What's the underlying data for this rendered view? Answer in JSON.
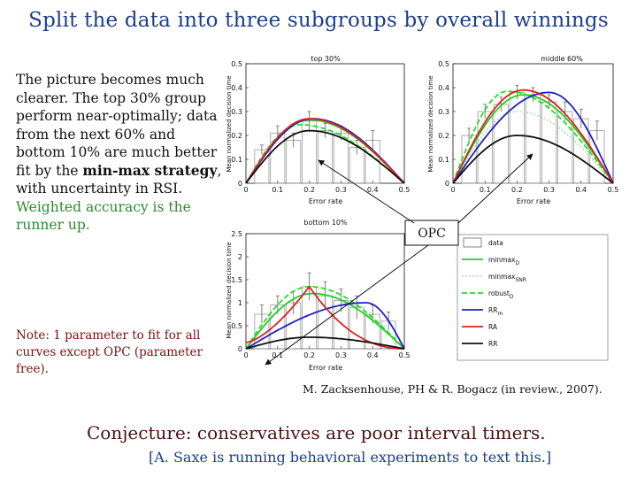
{
  "title": "Split the data into three subgroups by overall winnings",
  "body": {
    "part1": "The picture becomes much clearer. The top 30% group perform near-optimally; data from the next 60% and bottom 10% are much better fit by the ",
    "bold": "min-max strategy",
    "part2": ", with uncertainty in RSI. ",
    "green": "Weighted accuracy is the runner up."
  },
  "note": "Note: 1 parameter to fit for all curves except OPC (parameter free).",
  "citation": "M. Zacksenhouse, PH & R. Bogacz (in review., 2007).",
  "conjecture": "Conjecture: conservatives are poor interval timers.",
  "bracket": "[A. Saxe is running behavioral experiments to text this.]",
  "opc_label": "OPC",
  "plots": {
    "top": {
      "title": "top 30%",
      "xlabel": "Error rate",
      "ylabel": "Mean normalized decision time"
    },
    "middle": {
      "title": "middle 60%",
      "xlabel": "Error rate",
      "ylabel": "Mean normalized decision time"
    },
    "bottom": {
      "title": "bottom 10%",
      "xlabel": "Error rate",
      "ylabel": "Mean normalized decision time"
    }
  },
  "legend": [
    "data",
    "minmax",
    "minmax",
    "robust",
    "RR",
    "RA",
    "RR"
  ],
  "legend_sub": [
    "",
    "D",
    "SNR",
    "D",
    "m",
    "",
    ""
  ],
  "colors": {
    "title": "#1d3e8c",
    "green_text": "#2c8a2c",
    "note": "#7a1010",
    "conjecture": "#4a1010",
    "s_minmaxD": "#22cc22",
    "s_minmaxSNR": "#9fe09f",
    "s_robustD": "#22dd22",
    "s_RRm": "#2020c0",
    "s_RA": "#dd2020",
    "s_RR": "#111111",
    "s_data": "#999999"
  },
  "chart_data": [
    {
      "type": "line",
      "title": "top 30%",
      "xlabel": "Error rate",
      "ylabel": "Mean normalized decision time",
      "xlim": [
        0,
        0.5
      ],
      "ylim": [
        0,
        0.5
      ],
      "xticks": [
        "0",
        "0.1",
        "0.2",
        "0.3",
        "0.4",
        "0.5"
      ],
      "yticks": [
        "0",
        "0.1",
        "0.2",
        "0.3",
        "0.4",
        "0.5"
      ],
      "bars": {
        "x": [
          0.05,
          0.1,
          0.15,
          0.2,
          0.25,
          0.3,
          0.35,
          0.4
        ],
        "values": [
          0.14,
          0.21,
          0.18,
          0.26,
          0.22,
          0.21,
          0.15,
          0.18
        ],
        "errors": [
          0.02,
          0.03,
          0.03,
          0.04,
          0.03,
          0.03,
          0.03,
          0.04
        ]
      },
      "series": [
        {
          "key": "minmaxD",
          "style": "solid",
          "peak": 0.265,
          "tp": 0.2
        },
        {
          "key": "robustD",
          "style": "dashed",
          "peak": 0.245,
          "tp": 0.17
        },
        {
          "key": "RRm",
          "style": "solid",
          "peak": 0.27,
          "tp": 0.21
        },
        {
          "key": "RA",
          "style": "solid",
          "peak": 0.27,
          "tp": 0.2
        },
        {
          "key": "RR",
          "style": "solid",
          "peak": 0.22,
          "tp": 0.2
        }
      ]
    },
    {
      "type": "line",
      "title": "middle 60%",
      "xlabel": "Error rate",
      "ylabel": "Mean normalized decision time",
      "xlim": [
        0,
        0.5
      ],
      "ylim": [
        0,
        0.5
      ],
      "xticks": [
        "0",
        "0.1",
        "0.2",
        "0.3",
        "0.4",
        "0.5"
      ],
      "yticks": [
        "0",
        "0.1",
        "0.2",
        "0.3",
        "0.4",
        "0.5"
      ],
      "bars": {
        "x": [
          0.05,
          0.1,
          0.15,
          0.2,
          0.25,
          0.3,
          0.35,
          0.4,
          0.45
        ],
        "values": [
          0.2,
          0.3,
          0.33,
          0.38,
          0.37,
          0.34,
          0.3,
          0.27,
          0.22
        ],
        "errors": [
          0.03,
          0.03,
          0.03,
          0.03,
          0.03,
          0.03,
          0.04,
          0.04,
          0.04
        ]
      },
      "series": [
        {
          "key": "minmaxD",
          "style": "solid",
          "peak": 0.37,
          "tp": 0.22
        },
        {
          "key": "minmaxSNR",
          "style": "dotted",
          "peak": 0.3,
          "tp": 0.2
        },
        {
          "key": "robustD",
          "style": "dashed",
          "peak": 0.385,
          "tp": 0.17
        },
        {
          "key": "RRm",
          "style": "solid",
          "peak": 0.38,
          "tp": 0.3
        },
        {
          "key": "RA",
          "style": "solid",
          "peak": 0.39,
          "tp": 0.22
        },
        {
          "key": "RR",
          "style": "solid",
          "peak": 0.2,
          "tp": 0.2
        }
      ]
    },
    {
      "type": "line",
      "title": "bottom 10%",
      "xlabel": "Error rate",
      "ylabel": "Mean normalized decision time",
      "xlim": [
        0,
        0.5
      ],
      "ylim": [
        0,
        2.5
      ],
      "xticks": [
        "0",
        "0.1",
        "0.2",
        "0.3",
        "0.4",
        "0.5"
      ],
      "yticks": [
        "0",
        "0.5",
        "1",
        "1.5",
        "2",
        "2.5"
      ],
      "bars": {
        "x": [
          0.05,
          0.1,
          0.15,
          0.2,
          0.25,
          0.3,
          0.35,
          0.4,
          0.45
        ],
        "values": [
          0.75,
          0.95,
          1.0,
          1.35,
          1.15,
          1.05,
          0.9,
          0.75,
          0.6
        ],
        "errors": [
          0.2,
          0.2,
          0.25,
          0.3,
          0.3,
          0.25,
          0.25,
          0.2,
          0.2
        ]
      },
      "series": [
        {
          "key": "minmaxD",
          "style": "solid",
          "peak": 1.2,
          "tp": 0.21
        },
        {
          "key": "robustD",
          "style": "dashed",
          "peak": 1.35,
          "tp": 0.2
        },
        {
          "key": "RRm",
          "style": "solid",
          "peak": 1.0,
          "tp": 0.38
        },
        {
          "key": "RA",
          "style": "solid",
          "peak": 1.35,
          "tp": 0.2,
          "shape": "peaked"
        },
        {
          "key": "RR",
          "style": "solid",
          "peak": 0.25,
          "tp": 0.2
        }
      ]
    }
  ]
}
